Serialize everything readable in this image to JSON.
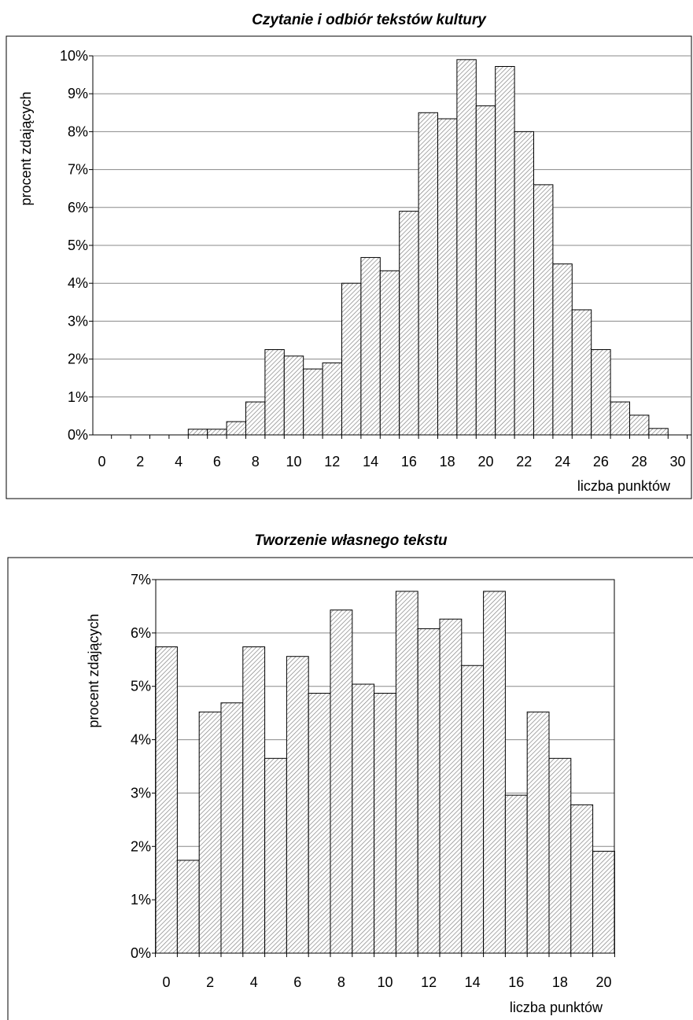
{
  "chart_data": [
    {
      "type": "bar",
      "title": "Czytanie i odbiór tekstów kultury",
      "xlabel": "liczba punktów",
      "ylabel": "procent zdających",
      "x": [
        0,
        1,
        2,
        3,
        4,
        5,
        6,
        7,
        8,
        9,
        10,
        11,
        12,
        13,
        14,
        15,
        16,
        17,
        18,
        19,
        20,
        21,
        22,
        23,
        24,
        25,
        26,
        27,
        28,
        29,
        30
      ],
      "values": [
        0,
        0,
        0,
        0,
        0,
        0.15,
        0.15,
        0.35,
        0.87,
        2.25,
        2.08,
        1.74,
        1.9,
        4.0,
        4.68,
        4.33,
        5.9,
        8.5,
        8.34,
        9.9,
        8.68,
        9.72,
        8.0,
        6.6,
        4.51,
        3.3,
        2.25,
        0.87,
        0.52,
        0.17,
        0
      ],
      "xticks": [
        0,
        2,
        4,
        6,
        8,
        10,
        12,
        14,
        16,
        18,
        20,
        22,
        24,
        26,
        28,
        30
      ],
      "yticks": [
        0,
        1,
        2,
        3,
        4,
        5,
        6,
        7,
        8,
        9,
        10
      ],
      "ytick_labels": [
        "0%",
        "1%",
        "2%",
        "3%",
        "4%",
        "5%",
        "6%",
        "7%",
        "8%",
        "9%",
        "10%"
      ],
      "ylim": [
        0,
        10
      ],
      "grid": "horizontal",
      "bar_fill": "diagonal-hatch"
    },
    {
      "type": "bar",
      "title": "Tworzenie własnego tekstu",
      "xlabel": "liczba punktów",
      "ylabel": "procent zdających",
      "x": [
        0,
        1,
        2,
        3,
        4,
        5,
        6,
        7,
        8,
        9,
        10,
        11,
        12,
        13,
        14,
        15,
        16,
        17,
        18,
        19,
        20
      ],
      "values": [
        5.74,
        1.74,
        4.52,
        4.69,
        5.74,
        3.65,
        5.56,
        4.87,
        6.43,
        5.04,
        4.87,
        6.78,
        6.08,
        6.26,
        5.39,
        6.78,
        2.96,
        4.52,
        3.65,
        2.78,
        1.91
      ],
      "xticks": [
        0,
        2,
        4,
        6,
        8,
        10,
        12,
        14,
        16,
        18,
        20
      ],
      "yticks": [
        0,
        1,
        2,
        3,
        4,
        5,
        6,
        7
      ],
      "ytick_labels": [
        "0%",
        "1%",
        "2%",
        "3%",
        "4%",
        "5%",
        "6%",
        "7%"
      ],
      "ylim": [
        0,
        7
      ],
      "grid": "horizontal",
      "bar_fill": "diagonal-hatch"
    }
  ]
}
